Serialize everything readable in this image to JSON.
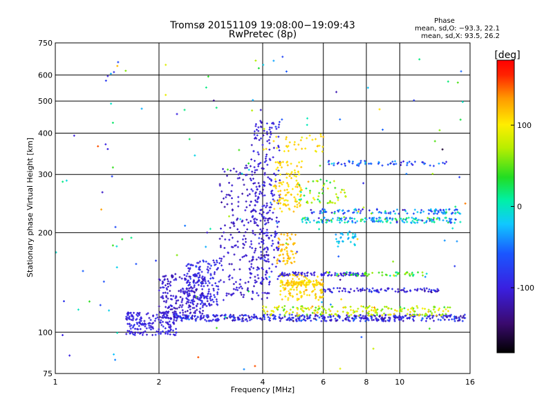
{
  "chart_data": {
    "type": "scatter",
    "title": "Tromsø 20151109 19:08:00−19:09:43",
    "subtitle": "RwPretec (8p)",
    "xlabel": "Frequency [MHz]",
    "ylabel": "Stationary phase Virtual Height [km]",
    "x_scale": "log",
    "y_scale": "log",
    "xlim": [
      1,
      16
    ],
    "ylim": [
      75,
      750
    ],
    "x_ticks": [
      {
        "value": 1,
        "label": "1"
      },
      {
        "value": 2,
        "label": "2"
      },
      {
        "value": 4,
        "label": "4"
      },
      {
        "value": 6,
        "label": "6"
      },
      {
        "value": 8,
        "label": "8"
      },
      {
        "value": 10,
        "label": "10"
      },
      {
        "value": 16,
        "label": "16"
      }
    ],
    "y_ticks": [
      {
        "value": 75,
        "label": "75"
      },
      {
        "value": 100,
        "label": "100"
      },
      {
        "value": 200,
        "label": "200"
      },
      {
        "value": 300,
        "label": "300"
      },
      {
        "value": 400,
        "label": "400"
      },
      {
        "value": 500,
        "label": "500"
      },
      {
        "value": 600,
        "label": "600"
      },
      {
        "value": 750,
        "label": "750"
      }
    ],
    "grid": true,
    "colorbar": {
      "label": "[deg]",
      "range": [
        -180,
        180
      ],
      "ticks": [
        {
          "value": 100,
          "label": "100"
        },
        {
          "value": 0,
          "label": "0"
        },
        {
          "value": -100,
          "label": "-100"
        }
      ]
    },
    "phase_stats": {
      "heading": "Phase",
      "line_o": "mean, sd,O: −93.3, 22.1",
      "line_x": "mean, sd,X:  93.5, 26.2"
    },
    "scatter_groups": [
      {
        "x": [
          1.6,
          2.25
        ],
        "y": [
          98,
          115
        ],
        "n": 180,
        "phase": -100,
        "spread": 25
      },
      {
        "x": [
          2.0,
          2.7
        ],
        "y": [
          110,
          150
        ],
        "n": 220,
        "phase": -110,
        "spread": 25
      },
      {
        "x": [
          2.4,
          3.0
        ],
        "y": [
          120,
          165
        ],
        "n": 160,
        "phase": -95,
        "spread": 30
      },
      {
        "x": [
          3.0,
          4.2
        ],
        "y": [
          125,
          320
        ],
        "n": 260,
        "phase": -110,
        "spread": 20
      },
      {
        "x": [
          3.7,
          4.5
        ],
        "y": [
          140,
          440
        ],
        "n": 220,
        "phase": -100,
        "spread": 25
      },
      {
        "x": [
          2.2,
          15.5
        ],
        "y": [
          108,
          113
        ],
        "n": 420,
        "phase": -95,
        "spread": 60
      },
      {
        "x": [
          4.0,
          14.0
        ],
        "y": [
          112,
          120
        ],
        "n": 200,
        "phase": 80,
        "spread": 70
      },
      {
        "x": [
          4.5,
          6.0
        ],
        "y": [
          125,
          150
        ],
        "n": 120,
        "phase": 110,
        "spread": 30
      },
      {
        "x": [
          4.3,
          5.2
        ],
        "y": [
          230,
          330
        ],
        "n": 110,
        "phase": 110,
        "spread": 25
      },
      {
        "x": [
          4.4,
          5.0
        ],
        "y": [
          160,
          200
        ],
        "n": 60,
        "phase": 120,
        "spread": 20
      },
      {
        "x": [
          4.5,
          8.0
        ],
        "y": [
          148,
          152
        ],
        "n": 90,
        "phase": -100,
        "spread": 30
      },
      {
        "x": [
          4.5,
          6.0
        ],
        "y": [
          138,
          143
        ],
        "n": 70,
        "phase": 110,
        "spread": 30
      },
      {
        "x": [
          6.0,
          13.0
        ],
        "y": [
          132,
          136
        ],
        "n": 90,
        "phase": -100,
        "spread": 40
      },
      {
        "x": [
          6.0,
          12.0
        ],
        "y": [
          148,
          152
        ],
        "n": 50,
        "phase": 40,
        "spread": 80
      },
      {
        "x": [
          5.2,
          15.0
        ],
        "y": [
          214,
          222
        ],
        "n": 170,
        "phase": -20,
        "spread": 110
      },
      {
        "x": [
          5.5,
          15.0
        ],
        "y": [
          228,
          236
        ],
        "n": 110,
        "phase": -50,
        "spread": 90
      },
      {
        "x": [
          5.0,
          7.0
        ],
        "y": [
          245,
          290
        ],
        "n": 50,
        "phase": 60,
        "spread": 90
      },
      {
        "x": [
          6.0,
          14.0
        ],
        "y": [
          318,
          330
        ],
        "n": 60,
        "phase": -60,
        "spread": 90
      },
      {
        "x": [
          6.5,
          7.5
        ],
        "y": [
          180,
          200
        ],
        "n": 30,
        "phase": -20,
        "spread": 30
      },
      {
        "x": [
          4.0,
          6.0
        ],
        "y": [
          350,
          400
        ],
        "n": 35,
        "phase": 110,
        "spread": 30
      },
      {
        "x": [
          1.0,
          16.0
        ],
        "y": [
          75,
          700
        ],
        "n": 120,
        "phase": 0,
        "spread": 180
      }
    ],
    "scatter_points": [
      {
        "x": 1.45,
        "y": 605,
        "phase": -30
      },
      {
        "x": 1.42,
        "y": 595,
        "phase": -100
      },
      {
        "x": 1.48,
        "y": 612,
        "phase": -90
      },
      {
        "x": 1.47,
        "y": 430,
        "phase": 20
      },
      {
        "x": 1.4,
        "y": 370,
        "phase": -100
      },
      {
        "x": 1.42,
        "y": 358,
        "phase": -100
      },
      {
        "x": 1.33,
        "y": 365,
        "phase": 150
      },
      {
        "x": 1.47,
        "y": 315,
        "phase": 40
      },
      {
        "x": 1.37,
        "y": 265,
        "phase": -110
      },
      {
        "x": 1.36,
        "y": 235,
        "phase": 130
      },
      {
        "x": 1.47,
        "y": 183,
        "phase": 40
      },
      {
        "x": 3.95,
        "y": 470,
        "phase": -110
      },
      {
        "x": 4.55,
        "y": 440,
        "phase": -60
      },
      {
        "x": 2.6,
        "y": 84,
        "phase": 150
      },
      {
        "x": 3.8,
        "y": 79,
        "phase": 150
      },
      {
        "x": 1.05,
        "y": 98,
        "phase": -100
      },
      {
        "x": 1.1,
        "y": 85,
        "phase": -100
      },
      {
        "x": 15.5,
        "y": 245,
        "phase": 140
      }
    ]
  }
}
